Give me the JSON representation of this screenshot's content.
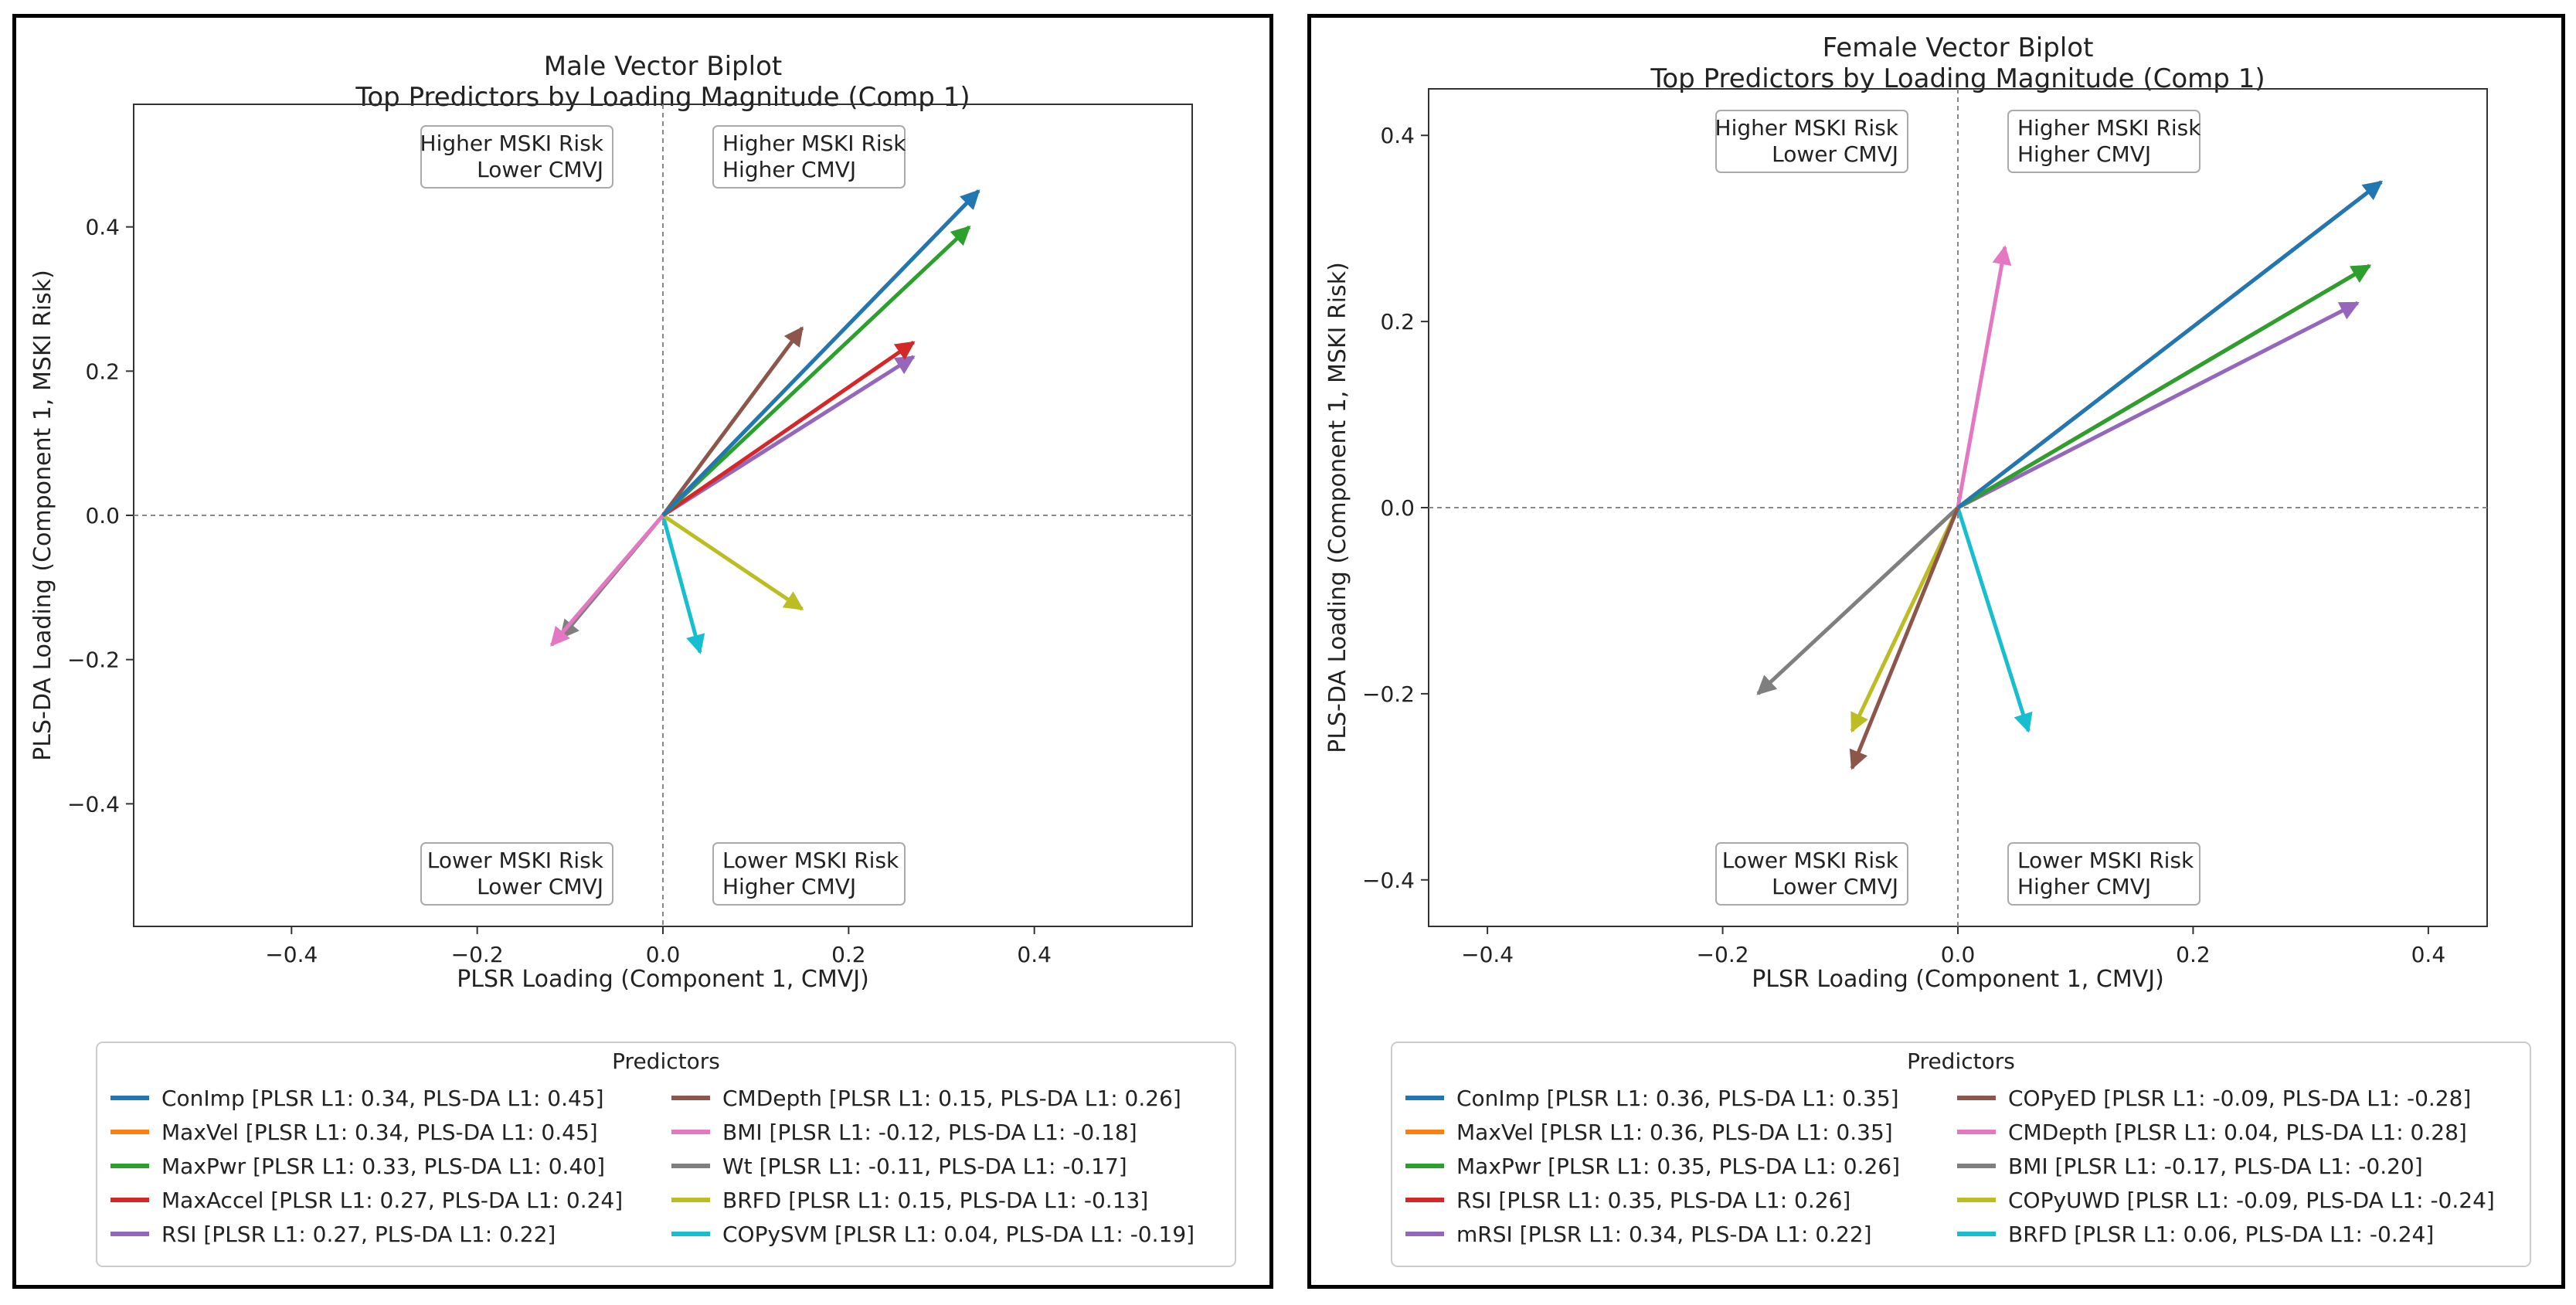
{
  "colors": [
    "#1f77b4",
    "#ff7f0e",
    "#2ca02c",
    "#d62728",
    "#9467bd",
    "#8c564b",
    "#e377c2",
    "#7f7f7f",
    "#bcbd22",
    "#17becf"
  ],
  "chart_data": [
    {
      "type": "biplot",
      "title": "Male Vector Biplot",
      "subtitle": "Top Predictors by Loading Magnitude (Comp 1)",
      "xlabel": "PLSR Loading (Component 1, CMVJ)",
      "ylabel": "PLS-DA Loading (Component 1, MSKI Risk)",
      "xlim": [
        -0.57,
        0.57
      ],
      "ylim": [
        -0.57,
        0.57
      ],
      "xticks": [
        "−0.4",
        "−0.2",
        "0.0",
        "0.2",
        "0.4"
      ],
      "xtick_values": [
        -0.4,
        -0.2,
        0.0,
        0.2,
        0.4
      ],
      "yticks": [
        "−0.4",
        "−0.2",
        "0.0",
        "0.2",
        "0.4"
      ],
      "ytick_values": [
        -0.4,
        -0.2,
        0.0,
        0.2,
        0.4
      ],
      "quadrant_labels": {
        "top_left": [
          "Higher MSKI Risk",
          "Lower CMVJ"
        ],
        "top_right": [
          "Higher MSKI Risk",
          "Higher CMVJ"
        ],
        "bottom_left": [
          "Lower MSKI Risk",
          "Lower CMVJ"
        ],
        "bottom_right": [
          "Lower MSKI Risk",
          "Higher CMVJ"
        ]
      },
      "legend_title": "Predictors",
      "legend_placement": "bottom",
      "series": [
        {
          "name": "ConImp [PLSR L1: 0.34, PLS-DA L1: 0.45]",
          "x": 0.34,
          "y": 0.45
        },
        {
          "name": "MaxVel [PLSR L1: 0.34, PLS-DA L1: 0.45]",
          "x": 0.34,
          "y": 0.45
        },
        {
          "name": "MaxPwr [PLSR L1: 0.33, PLS-DA L1: 0.40]",
          "x": 0.33,
          "y": 0.4
        },
        {
          "name": "MaxAccel [PLSR L1: 0.27, PLS-DA L1: 0.24]",
          "x": 0.27,
          "y": 0.24
        },
        {
          "name": "RSI [PLSR L1: 0.27, PLS-DA L1: 0.22]",
          "x": 0.27,
          "y": 0.22
        },
        {
          "name": "CMDepth [PLSR L1: 0.15, PLS-DA L1: 0.26]",
          "x": 0.15,
          "y": 0.26
        },
        {
          "name": "BMI [PLSR L1: -0.12, PLS-DA L1: -0.18]",
          "x": -0.12,
          "y": -0.18
        },
        {
          "name": "Wt [PLSR L1: -0.11, PLS-DA L1: -0.17]",
          "x": -0.11,
          "y": -0.17
        },
        {
          "name": "BRFD [PLSR L1: 0.15, PLS-DA L1: -0.13]",
          "x": 0.15,
          "y": -0.13
        },
        {
          "name": "COPySVM [PLSR L1: 0.04, PLS-DA L1: -0.19]",
          "x": 0.04,
          "y": -0.19
        }
      ]
    },
    {
      "type": "biplot",
      "title": "Female Vector Biplot",
      "subtitle": "Top Predictors by Loading Magnitude (Comp 1)",
      "xlabel": "PLSR Loading (Component 1, CMVJ)",
      "ylabel": "PLS-DA Loading (Component 1, MSKI Risk)",
      "xlim": [
        -0.45,
        0.45
      ],
      "ylim": [
        -0.45,
        0.45
      ],
      "xticks": [
        "−0.4",
        "−0.2",
        "0.0",
        "0.2",
        "0.4"
      ],
      "xtick_values": [
        -0.4,
        -0.2,
        0.0,
        0.2,
        0.4
      ],
      "yticks": [
        "−0.4",
        "−0.2",
        "0.0",
        "0.2",
        "0.4"
      ],
      "ytick_values": [
        -0.4,
        -0.2,
        0.0,
        0.2,
        0.4
      ],
      "quadrant_labels": {
        "top_left": [
          "Higher MSKI Risk",
          "Lower CMVJ"
        ],
        "top_right": [
          "Higher MSKI Risk",
          "Higher CMVJ"
        ],
        "bottom_left": [
          "Lower MSKI Risk",
          "Lower CMVJ"
        ],
        "bottom_right": [
          "Lower MSKI Risk",
          "Higher CMVJ"
        ]
      },
      "legend_title": "Predictors",
      "legend_placement": "bottom",
      "series": [
        {
          "name": "ConImp [PLSR L1: 0.36, PLS-DA L1: 0.35]",
          "x": 0.36,
          "y": 0.35
        },
        {
          "name": "MaxVel [PLSR L1: 0.36, PLS-DA L1: 0.35]",
          "x": 0.36,
          "y": 0.35
        },
        {
          "name": "MaxPwr [PLSR L1: 0.35, PLS-DA L1: 0.26]",
          "x": 0.35,
          "y": 0.26
        },
        {
          "name": "RSI [PLSR L1: 0.35, PLS-DA L1: 0.26]",
          "x": 0.35,
          "y": 0.26
        },
        {
          "name": "mRSI [PLSR L1: 0.34, PLS-DA L1: 0.22]",
          "x": 0.34,
          "y": 0.22
        },
        {
          "name": "COPyED [PLSR L1: -0.09, PLS-DA L1: -0.28]",
          "x": -0.09,
          "y": -0.28
        },
        {
          "name": "CMDepth [PLSR L1: 0.04, PLS-DA L1: 0.28]",
          "x": 0.04,
          "y": 0.28
        },
        {
          "name": "BMI [PLSR L1: -0.17, PLS-DA L1: -0.20]",
          "x": -0.17,
          "y": -0.2
        },
        {
          "name": "COPyUWD [PLSR L1: -0.09, PLS-DA L1: -0.24]",
          "x": -0.09,
          "y": -0.24
        },
        {
          "name": "BRFD [PLSR L1: 0.06, PLS-DA L1: -0.24]",
          "x": 0.06,
          "y": -0.24
        }
      ]
    }
  ]
}
